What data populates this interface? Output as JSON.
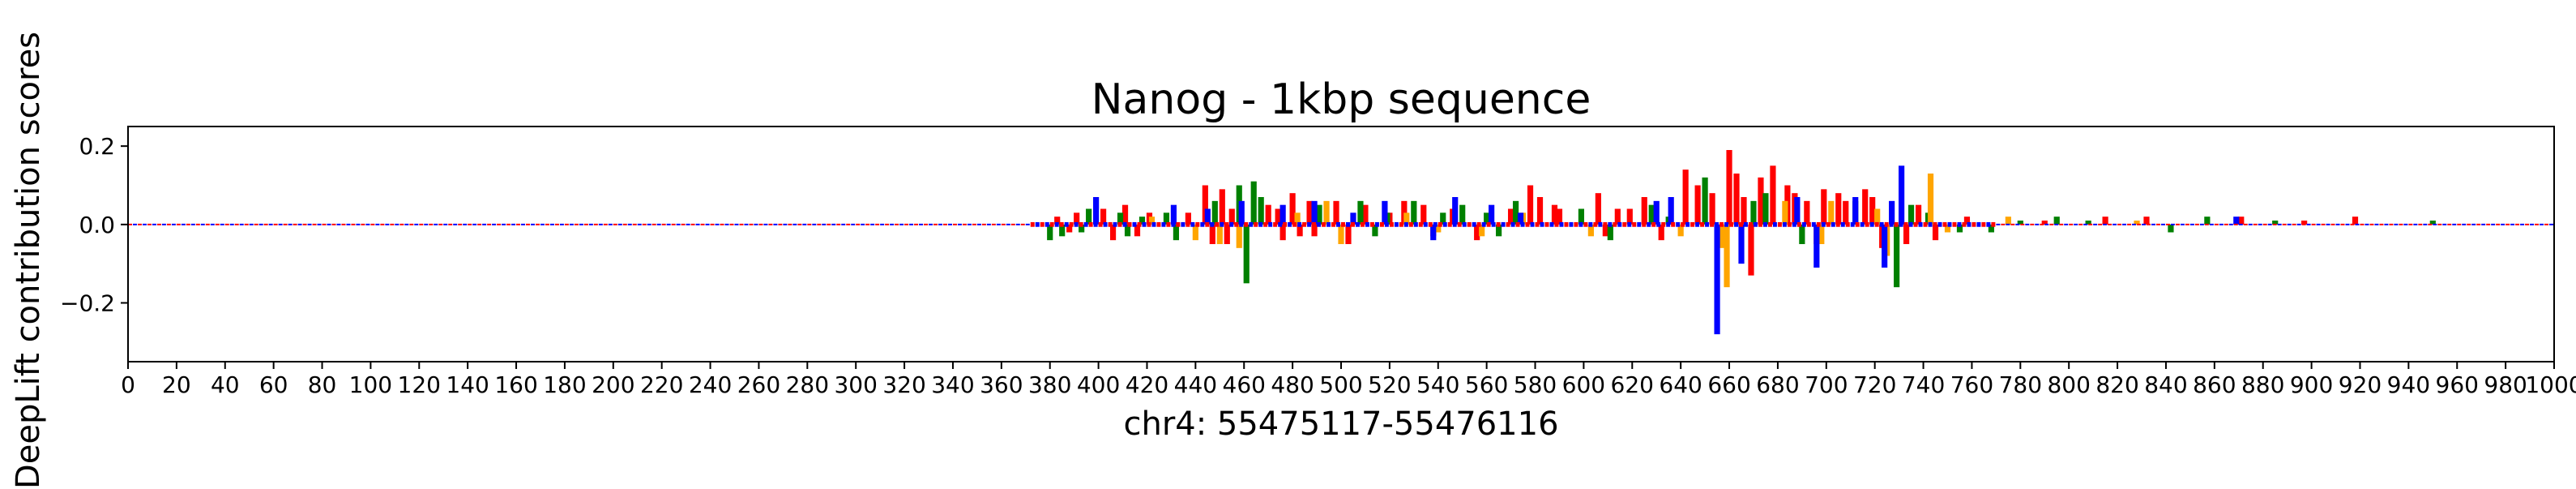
{
  "chart_data": {
    "type": "bar",
    "title": "Nanog - 1kbp sequence",
    "xlabel": "chr4: 55475117-55476116",
    "ylabel": "DeepLift contribution scores",
    "xlim": [
      0,
      1000
    ],
    "ylim": [
      -0.35,
      0.25
    ],
    "xticks": [
      0,
      20,
      40,
      60,
      80,
      100,
      120,
      140,
      160,
      180,
      200,
      220,
      240,
      260,
      280,
      300,
      320,
      340,
      360,
      380,
      400,
      420,
      440,
      460,
      480,
      500,
      520,
      540,
      560,
      580,
      600,
      620,
      640,
      660,
      680,
      700,
      720,
      740,
      760,
      780,
      800,
      820,
      840,
      860,
      880,
      900,
      920,
      940,
      960,
      980,
      1000
    ],
    "xtick_labels": [
      "0",
      "20",
      "40",
      "60",
      "80",
      "100",
      "120",
      "140",
      "160",
      "180",
      "200",
      "220",
      "240",
      "260",
      "280",
      "300",
      "320",
      "340",
      "360",
      "380",
      "400",
      "420",
      "440",
      "460",
      "480",
      "500",
      "520",
      "540",
      "560",
      "580",
      "600",
      "620",
      "640",
      "660",
      "680",
      "700",
      "720",
      "740",
      "760",
      "780",
      "800",
      "820",
      "840",
      "860",
      "880",
      "900",
      "920",
      "940",
      "960",
      "980",
      "1000"
    ],
    "yticks": [
      -0.2,
      0.0,
      0.2
    ],
    "ytick_labels": [
      "−0.2",
      "0.0",
      "0.2"
    ],
    "grid": false,
    "legend": "none",
    "base_colors": {
      "A": "#008000",
      "C": "#0000ff",
      "G": "#ffa500",
      "T": "#ff0000"
    },
    "series": [
      {
        "base": "T",
        "points": [
          [
            383,
            0.02
          ],
          [
            388,
            -0.02
          ],
          [
            391,
            0.03
          ],
          [
            402,
            0.04
          ],
          [
            406,
            -0.04
          ],
          [
            411,
            0.05
          ],
          [
            416,
            -0.03
          ],
          [
            421,
            0.03
          ],
          [
            437,
            0.03
          ],
          [
            444,
            0.1
          ],
          [
            447,
            -0.05
          ],
          [
            451,
            0.09
          ],
          [
            453,
            -0.05
          ],
          [
            455,
            0.04
          ],
          [
            470,
            0.05
          ],
          [
            474,
            0.04
          ],
          [
            476,
            -0.04
          ],
          [
            480,
            0.08
          ],
          [
            483,
            -0.03
          ],
          [
            487,
            0.06
          ],
          [
            489,
            -0.03
          ],
          [
            498,
            0.06
          ],
          [
            503,
            -0.05
          ],
          [
            510,
            0.05
          ],
          [
            520,
            0.03
          ],
          [
            526,
            0.06
          ],
          [
            534,
            0.05
          ],
          [
            538,
            -0.03
          ],
          [
            546,
            0.04
          ],
          [
            556,
            -0.04
          ],
          [
            570,
            0.04
          ],
          [
            578,
            0.1
          ],
          [
            582,
            0.07
          ],
          [
            588,
            0.05
          ],
          [
            590,
            0.04
          ],
          [
            606,
            0.08
          ],
          [
            609,
            -0.03
          ],
          [
            614,
            0.04
          ],
          [
            619,
            0.04
          ],
          [
            625,
            0.07
          ],
          [
            632,
            -0.04
          ],
          [
            642,
            0.14
          ],
          [
            647,
            0.1
          ],
          [
            653,
            0.08
          ],
          [
            660,
            0.19
          ],
          [
            663,
            0.13
          ],
          [
            666,
            0.07
          ],
          [
            669,
            -0.13
          ],
          [
            673,
            0.12
          ],
          [
            678,
            0.15
          ],
          [
            684,
            0.1
          ],
          [
            687,
            0.08
          ],
          [
            692,
            0.06
          ],
          [
            696,
            -0.05
          ],
          [
            699,
            0.09
          ],
          [
            705,
            0.08
          ],
          [
            708,
            0.06
          ],
          [
            716,
            0.09
          ],
          [
            719,
            0.07
          ],
          [
            723,
            -0.06
          ],
          [
            733,
            -0.05
          ],
          [
            738,
            0.05
          ],
          [
            745,
            -0.04
          ],
          [
            758,
            0.02
          ],
          [
            790,
            0.01
          ],
          [
            815,
            0.02
          ],
          [
            832,
            0.02
          ],
          [
            871,
            0.02
          ],
          [
            897,
            0.01
          ],
          [
            918,
            0.02
          ]
        ]
      },
      {
        "base": "A",
        "points": [
          [
            380,
            -0.04
          ],
          [
            385,
            -0.03
          ],
          [
            393,
            -0.02
          ],
          [
            396,
            0.04
          ],
          [
            409,
            0.03
          ],
          [
            412,
            -0.03
          ],
          [
            418,
            0.02
          ],
          [
            428,
            0.03
          ],
          [
            432,
            -0.04
          ],
          [
            448,
            0.06
          ],
          [
            458,
            0.1
          ],
          [
            461,
            -0.15
          ],
          [
            464,
            0.11
          ],
          [
            467,
            0.07
          ],
          [
            491,
            0.05
          ],
          [
            508,
            0.06
          ],
          [
            514,
            -0.03
          ],
          [
            519,
            0.03
          ],
          [
            530,
            0.06
          ],
          [
            542,
            0.03
          ],
          [
            550,
            0.05
          ],
          [
            560,
            0.03
          ],
          [
            565,
            -0.03
          ],
          [
            572,
            0.06
          ],
          [
            599,
            0.04
          ],
          [
            611,
            -0.04
          ],
          [
            628,
            0.05
          ],
          [
            635,
            0.02
          ],
          [
            650,
            0.12
          ],
          [
            670,
            0.06
          ],
          [
            675,
            0.08
          ],
          [
            690,
            -0.05
          ],
          [
            712,
            0.06
          ],
          [
            729,
            -0.16
          ],
          [
            735,
            0.05
          ],
          [
            742,
            0.03
          ],
          [
            755,
            -0.02
          ],
          [
            768,
            -0.02
          ],
          [
            780,
            0.01
          ],
          [
            795,
            0.02
          ],
          [
            808,
            0.01
          ],
          [
            842,
            -0.02
          ],
          [
            857,
            0.02
          ],
          [
            885,
            0.01
          ],
          [
            950,
            0.01
          ]
        ]
      },
      {
        "base": "G",
        "points": [
          [
            422,
            0.02
          ],
          [
            440,
            -0.04
          ],
          [
            450,
            -0.05
          ],
          [
            458,
            -0.06
          ],
          [
            482,
            0.03
          ],
          [
            494,
            0.06
          ],
          [
            500,
            -0.05
          ],
          [
            527,
            0.03
          ],
          [
            540,
            -0.02
          ],
          [
            558,
            -0.03
          ],
          [
            575,
            0.03
          ],
          [
            603,
            -0.03
          ],
          [
            640,
            -0.03
          ],
          [
            657,
            -0.06
          ],
          [
            659,
            -0.16
          ],
          [
            683,
            0.06
          ],
          [
            698,
            -0.05
          ],
          [
            702,
            0.06
          ],
          [
            721,
            0.04
          ],
          [
            725,
            -0.08
          ],
          [
            743,
            0.13
          ],
          [
            750,
            -0.02
          ],
          [
            775,
            0.02
          ],
          [
            828,
            0.01
          ]
        ]
      },
      {
        "base": "C",
        "points": [
          [
            399,
            0.07
          ],
          [
            431,
            0.05
          ],
          [
            445,
            0.04
          ],
          [
            459,
            0.06
          ],
          [
            476,
            0.05
          ],
          [
            489,
            0.06
          ],
          [
            505,
            0.03
          ],
          [
            518,
            0.06
          ],
          [
            538,
            -0.04
          ],
          [
            547,
            0.07
          ],
          [
            562,
            0.05
          ],
          [
            574,
            0.03
          ],
          [
            630,
            0.06
          ],
          [
            636,
            0.07
          ],
          [
            655,
            -0.28
          ],
          [
            665,
            -0.1
          ],
          [
            688,
            0.07
          ],
          [
            696,
            -0.11
          ],
          [
            712,
            0.07
          ],
          [
            724,
            -0.11
          ],
          [
            727,
            0.06
          ],
          [
            731,
            0.15
          ],
          [
            869,
            0.02
          ]
        ]
      }
    ]
  }
}
